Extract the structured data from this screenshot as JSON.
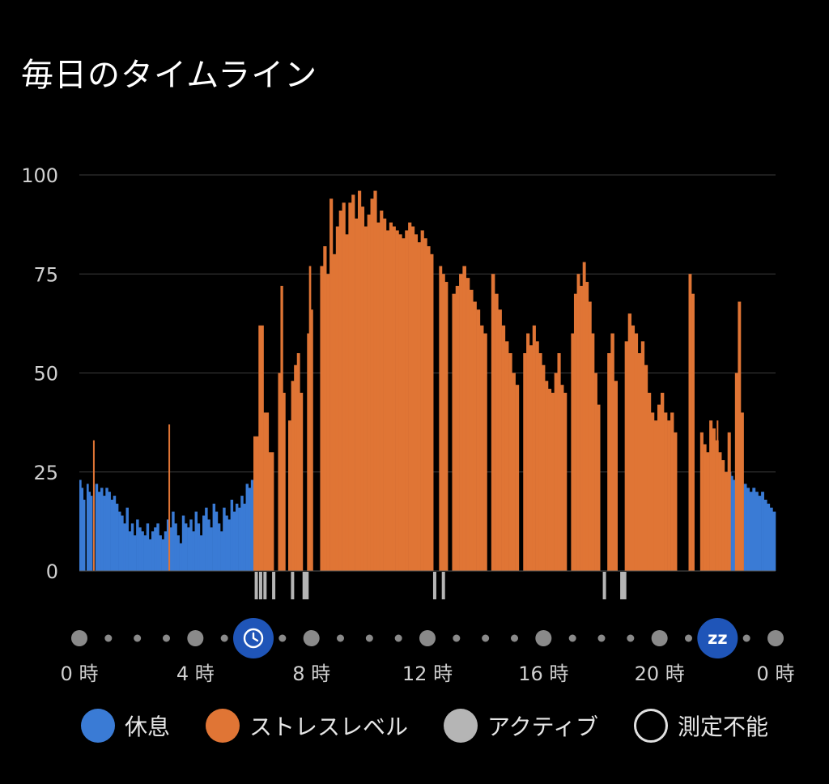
{
  "title": "毎日のタイムライン",
  "colors": {
    "background": "#000000",
    "rest": "#3a7bd5",
    "stress": "#e07535",
    "active": "#b5b5b5",
    "grid": "#3c3c3c",
    "axis_text": "#d0d0d0",
    "marker_bg": "#1f55b8",
    "dot": "#8a8a8a"
  },
  "chart_data": {
    "type": "bar",
    "xlabel": "",
    "ylabel": "",
    "ylim": [
      0,
      100
    ],
    "yticks": [
      0,
      25,
      50,
      75,
      100
    ],
    "xlim_hours": [
      0,
      24
    ],
    "xtick_labels": [
      "0 時",
      "4 時",
      "8 時",
      "12 時",
      "16 時",
      "20 時",
      "0 時"
    ],
    "xtick_hours": [
      0,
      4,
      8,
      12,
      16,
      20,
      24
    ],
    "grid": true,
    "series": [
      {
        "name": "休息",
        "segments": [
          {
            "start": 0.0,
            "end": 0.2,
            "values": [
              23,
              21,
              18
            ]
          },
          {
            "start": 0.25,
            "end": 0.45,
            "values": [
              22,
              20,
              19
            ]
          },
          {
            "start": 0.55,
            "end": 6.0,
            "values": [
              22,
              20,
              21,
              19,
              21,
              20,
              18,
              19,
              17,
              15,
              14,
              12,
              16,
              10,
              12,
              9,
              13,
              11,
              10,
              9,
              12,
              8,
              10,
              11,
              12,
              9,
              8,
              10,
              13,
              11,
              15,
              12,
              9,
              7,
              14,
              12,
              11,
              13,
              10,
              15,
              12,
              9,
              14,
              16,
              13,
              11,
              17,
              15,
              12,
              10,
              16,
              14,
              13,
              18,
              15,
              17,
              16,
              19,
              17,
              22,
              21,
              23
            ]
          },
          {
            "start": 22.4,
            "end": 22.6,
            "values": [
              25,
              24,
              23
            ]
          },
          {
            "start": 22.9,
            "end": 24.0,
            "values": [
              22,
              21,
              20,
              21,
              20,
              19,
              20,
              18,
              17,
              16,
              15
            ]
          }
        ]
      },
      {
        "name": "ストレスレベル",
        "segments": [
          {
            "start": 6.0,
            "end": 6.7,
            "values": [
              34,
              62,
              40,
              30
            ]
          },
          {
            "start": 6.85,
            "end": 7.1,
            "values": [
              50,
              72,
              45
            ]
          },
          {
            "start": 7.2,
            "end": 7.7,
            "values": [
              38,
              48,
              52,
              55,
              45
            ]
          },
          {
            "start": 7.85,
            "end": 8.05,
            "values": [
              60,
              77,
              66
            ]
          },
          {
            "start": 8.3,
            "end": 12.2,
            "values": [
              77,
              82,
              75,
              94,
              80,
              87,
              91,
              93,
              85,
              93,
              95,
              89,
              96,
              92,
              87,
              90,
              94,
              96,
              88,
              91,
              89,
              86,
              88,
              87,
              86,
              85,
              84,
              86,
              88,
              87,
              85,
              83,
              86,
              84,
              82,
              80
            ]
          },
          {
            "start": 12.4,
            "end": 12.7,
            "values": [
              77,
              75,
              73
            ]
          },
          {
            "start": 12.85,
            "end": 14.05,
            "values": [
              70,
              72,
              75,
              77,
              74,
              71,
              68,
              66,
              62,
              60
            ]
          },
          {
            "start": 14.2,
            "end": 15.15,
            "values": [
              75,
              70,
              66,
              62,
              58,
              55,
              50,
              47
            ]
          },
          {
            "start": 15.3,
            "end": 16.8,
            "values": [
              55,
              60,
              57,
              62,
              58,
              55,
              52,
              48,
              46,
              45,
              50,
              55,
              47,
              45
            ]
          },
          {
            "start": 16.95,
            "end": 17.95,
            "values": [
              60,
              70,
              75,
              72,
              78,
              73,
              68,
              60,
              50,
              42
            ]
          },
          {
            "start": 18.2,
            "end": 18.55,
            "values": [
              55,
              60,
              48
            ]
          },
          {
            "start": 18.8,
            "end": 20.6,
            "values": [
              58,
              65,
              62,
              60,
              55,
              58,
              52,
              45,
              40,
              38,
              42,
              45,
              40,
              38,
              40,
              35
            ]
          },
          {
            "start": 21.0,
            "end": 21.2,
            "values": [
              75,
              70
            ]
          },
          {
            "start": 21.4,
            "end": 22.45,
            "values": [
              35,
              32,
              30,
              38,
              36,
              33,
              30,
              28,
              25,
              35
            ]
          },
          {
            "start": 22.6,
            "end": 22.9,
            "values": [
              50,
              68,
              40
            ]
          }
        ],
        "spikes": [
          {
            "x": 0.5,
            "value": 33
          },
          {
            "x": 3.1,
            "value": 37
          },
          {
            "x": 22.0,
            "value": 38
          }
        ]
      },
      {
        "name": "アクティブ",
        "markers": [
          6.1,
          6.25,
          6.4,
          6.7,
          7.35,
          7.75,
          7.85,
          12.25,
          12.55,
          18.1,
          18.7,
          18.8
        ]
      }
    ],
    "timeline": {
      "dot_hours": [
        0,
        1,
        2,
        3,
        4,
        5,
        6,
        7,
        8,
        9,
        10,
        11,
        12,
        13,
        14,
        15,
        16,
        17,
        18,
        19,
        20,
        21,
        22,
        23,
        24
      ],
      "major_dot_hours": [
        0,
        4,
        8,
        12,
        16,
        20,
        24
      ],
      "icons": [
        {
          "hour": 6,
          "icon": "clock-icon"
        },
        {
          "hour": 22,
          "icon": "sleep-zz-icon",
          "label": "zz"
        }
      ]
    }
  },
  "legend": [
    {
      "label": "休息",
      "color": "#3a7bd5",
      "style": "filled"
    },
    {
      "label": "ストレスレベル",
      "color": "#e07535",
      "style": "filled"
    },
    {
      "label": "アクティブ",
      "color": "#b5b5b5",
      "style": "filled"
    },
    {
      "label": "測定不能",
      "color": "#e0e0e0",
      "style": "outline"
    }
  ]
}
